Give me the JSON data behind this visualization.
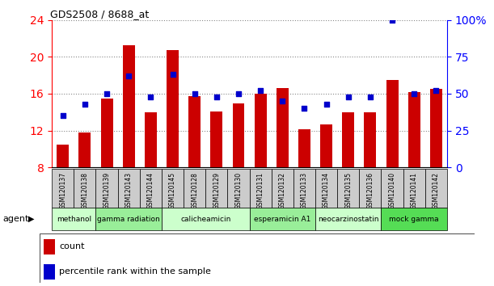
{
  "title": "GDS2508 / 8688_at",
  "categories": [
    "GSM120137",
    "GSM120138",
    "GSM120139",
    "GSM120143",
    "GSM120144",
    "GSM120145",
    "GSM120128",
    "GSM120129",
    "GSM120130",
    "GSM120131",
    "GSM120132",
    "GSM120133",
    "GSM120134",
    "GSM120135",
    "GSM120136",
    "GSM120140",
    "GSM120141",
    "GSM120142"
  ],
  "bar_values": [
    10.5,
    11.8,
    15.5,
    21.3,
    14.0,
    20.7,
    15.7,
    14.1,
    14.9,
    16.0,
    16.6,
    12.1,
    12.7,
    14.0,
    14.0,
    17.5,
    16.2,
    16.5
  ],
  "dot_values": [
    35,
    43,
    50,
    62,
    48,
    63,
    50,
    48,
    50,
    52,
    45,
    40,
    43,
    48,
    48,
    100,
    50,
    52
  ],
  "ylim": [
    8,
    24
  ],
  "y2lim": [
    0,
    100
  ],
  "yticks": [
    8,
    12,
    16,
    20,
    24
  ],
  "y2ticks": [
    0,
    25,
    50,
    75,
    100
  ],
  "y2ticklabels": [
    "0",
    "25",
    "50",
    "75",
    "100%"
  ],
  "bar_color": "#cc0000",
  "dot_color": "#0000cc",
  "grid_color": "#888888",
  "agent_groups": [
    {
      "label": "methanol",
      "start": 0,
      "end": 2,
      "color": "#ccffcc"
    },
    {
      "label": "gamma radiation",
      "start": 2,
      "end": 5,
      "color": "#99ee99"
    },
    {
      "label": "calicheamicin",
      "start": 5,
      "end": 9,
      "color": "#ccffcc"
    },
    {
      "label": "esperamicin A1",
      "start": 9,
      "end": 12,
      "color": "#99ee99"
    },
    {
      "label": "neocarzinostatin",
      "start": 12,
      "end": 15,
      "color": "#ccffcc"
    },
    {
      "label": "mock gamma",
      "start": 15,
      "end": 18,
      "color": "#55dd55"
    }
  ],
  "legend_items": [
    {
      "label": "count",
      "color": "#cc0000"
    },
    {
      "label": "percentile rank within the sample",
      "color": "#0000cc"
    }
  ],
  "agent_label": "agent",
  "tick_bg": "#cccccc"
}
